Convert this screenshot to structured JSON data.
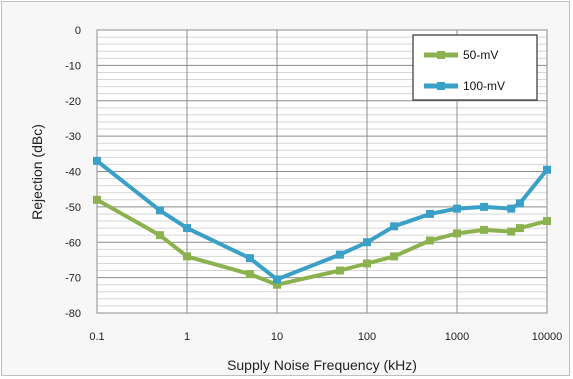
{
  "chart_data": {
    "type": "line",
    "xlabel": "Supply Noise Frequency (kHz)",
    "ylabel": "Rejection (dBc)",
    "xscale": "log",
    "xlim": [
      0.1,
      10000
    ],
    "ylim": [
      -80,
      0
    ],
    "x_tick_labels": [
      "0.1",
      "1",
      "10",
      "100",
      "1000",
      "10000"
    ],
    "x_tick_values": [
      0.1,
      1,
      10,
      100,
      1000,
      10000
    ],
    "y_tick_labels": [
      "0",
      "-10",
      "-20",
      "-30",
      "-40",
      "-50",
      "-60",
      "-70",
      "-80"
    ],
    "y_tick_values": [
      0,
      -10,
      -20,
      -30,
      -40,
      -50,
      -60,
      -70,
      -80
    ],
    "grid": true,
    "legend_position": "top-right",
    "series": [
      {
        "name": "50-mV",
        "color": "#8cb250",
        "marker": "square",
        "x": [
          0.1,
          0.5,
          1,
          5,
          10,
          50,
          100,
          200,
          500,
          1000,
          2000,
          4000,
          5000,
          10000
        ],
        "y": [
          -48,
          -58,
          -64,
          -69,
          -72,
          -68,
          -66,
          -64,
          -59.5,
          -57.5,
          -56.5,
          -57,
          -56,
          -54
        ]
      },
      {
        "name": "100-mV",
        "color": "#3aa0c8",
        "marker": "square",
        "x": [
          0.1,
          0.5,
          1,
          5,
          10,
          50,
          100,
          200,
          500,
          1000,
          2000,
          4000,
          5000,
          10000
        ],
        "y": [
          -37,
          -51,
          -56,
          -64.5,
          -70.5,
          -63.5,
          -60,
          -55.5,
          -52,
          -50.5,
          -50,
          -50.5,
          -49,
          -39.5
        ]
      }
    ]
  }
}
